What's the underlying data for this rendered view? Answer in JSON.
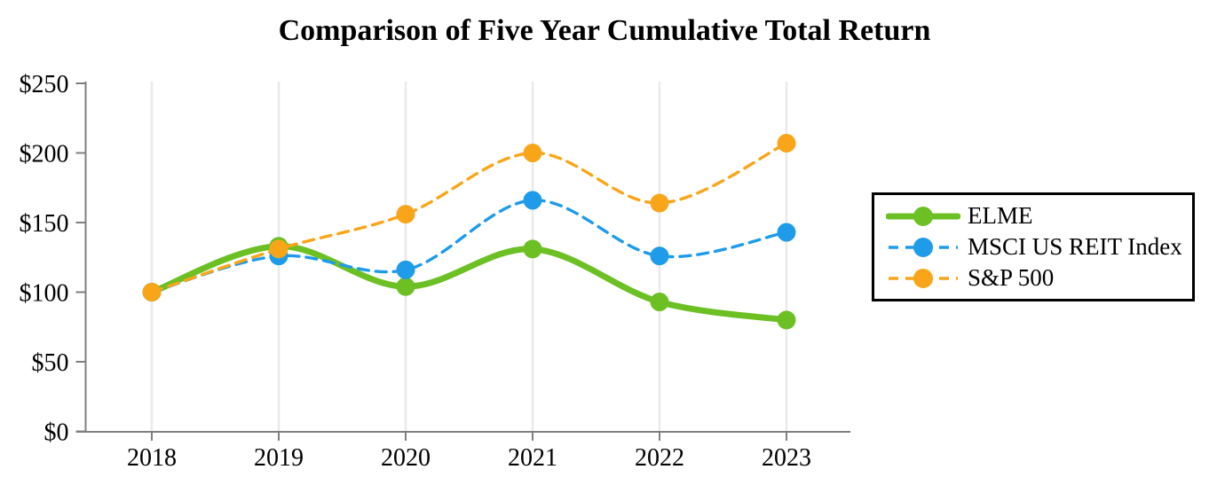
{
  "chart_data": {
    "type": "line",
    "title": "Comparison of Five Year Cumulative Total Return",
    "x": [
      "2018",
      "2019",
      "2020",
      "2021",
      "2022",
      "2023"
    ],
    "y_tick_labels": [
      "$0",
      "$50",
      "$100",
      "$150",
      "$200",
      "$250"
    ],
    "y_tick_values": [
      0,
      50,
      100,
      150,
      200,
      250
    ],
    "ylim": [
      0,
      250
    ],
    "xlabel": "",
    "ylabel": "",
    "grid": "vertical-only",
    "legend_position": "right",
    "line_style_note": "smoothed curves; ELME solid thick, others dashed",
    "series": [
      {
        "name": "ELME",
        "color": "#6CC024",
        "style": "solid",
        "values": [
          100,
          133,
          104,
          131,
          93,
          80
        ]
      },
      {
        "name": "MSCI US REIT Index",
        "color": "#1E9BE9",
        "style": "dashed",
        "values": [
          100,
          126,
          116,
          166,
          126,
          143
        ]
      },
      {
        "name": "S&P 500",
        "color": "#F9A51A",
        "style": "dashed",
        "values": [
          100,
          131,
          156,
          200,
          164,
          207
        ]
      }
    ],
    "colors": {
      "axis": "#7F7F7F",
      "gridline": "#E9E9E9",
      "text": "#000000"
    }
  }
}
